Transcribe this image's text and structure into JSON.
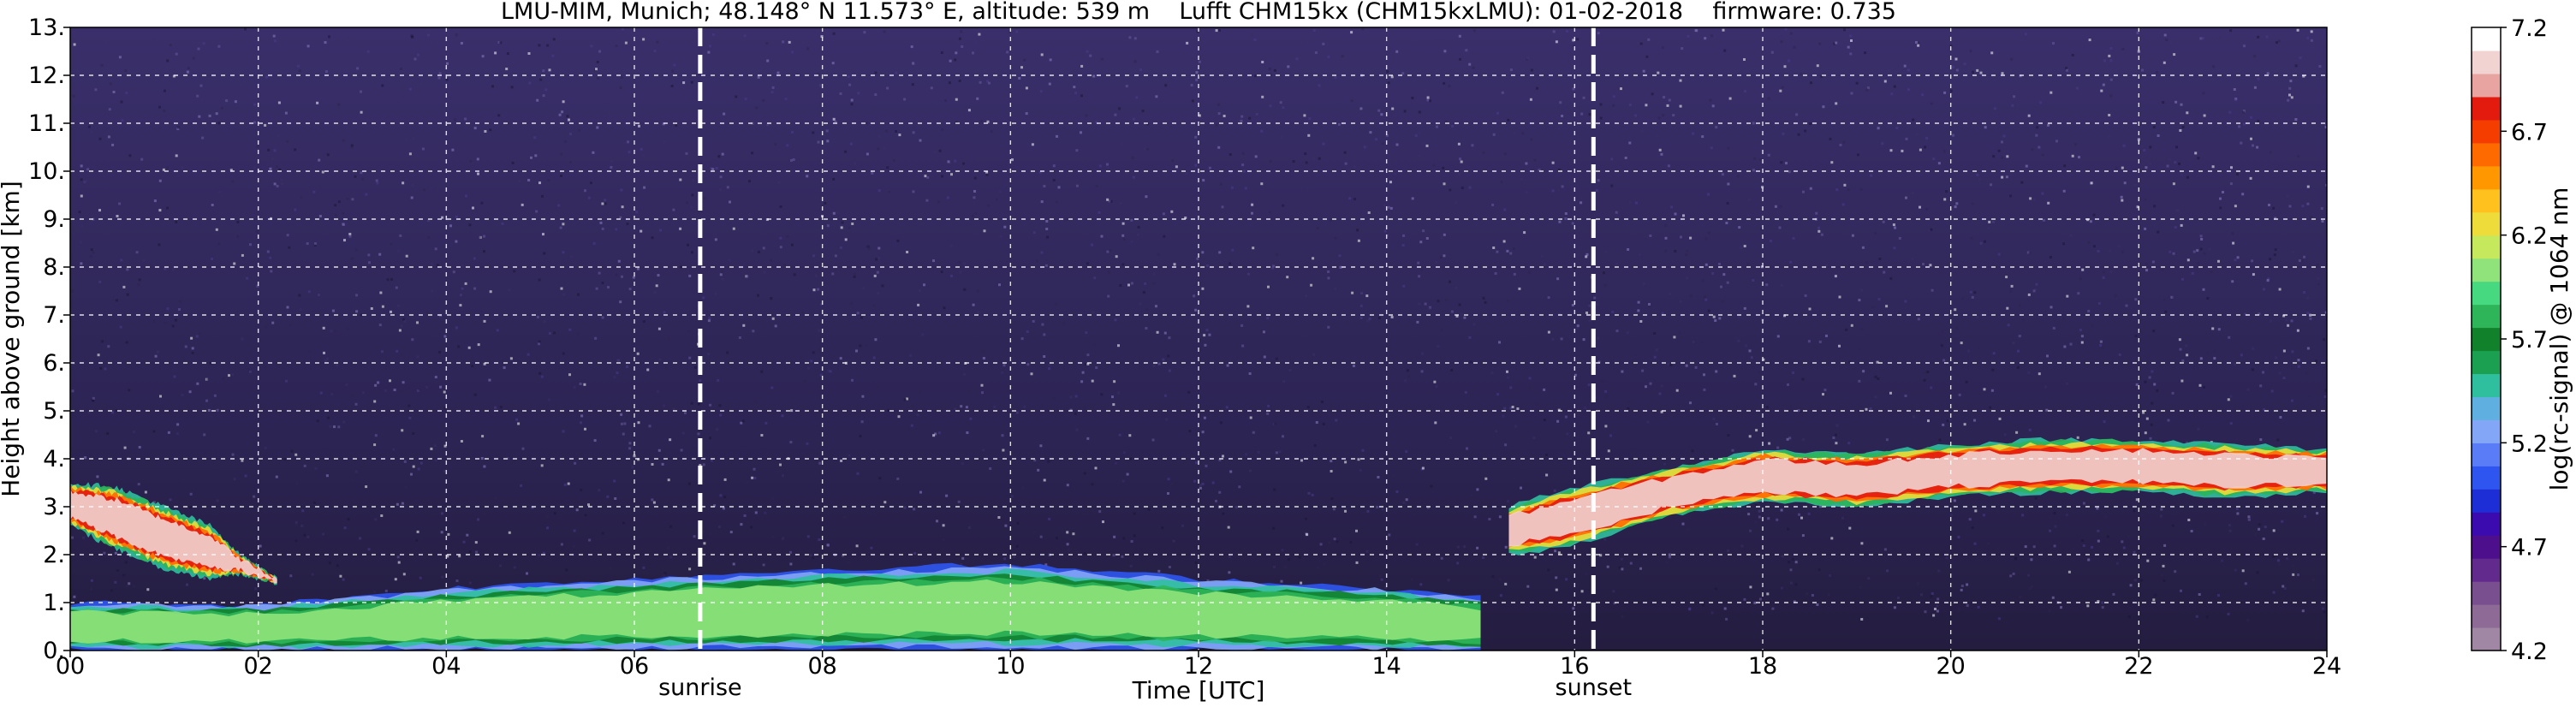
{
  "chart_data": {
    "type": "heatmap",
    "title": "LMU-MIM, Munich; 48.148° N 11.573° E, altitude: 539 m    Lufft CHM15kx (CHM15kxLMU): 01-02-2018    firmware: 0.735",
    "xlabel": "Time [UTC]",
    "ylabel": "Height above ground [km]",
    "xlim": [
      0,
      24
    ],
    "ylim": [
      0,
      13
    ],
    "x_ticks": [
      0,
      2,
      4,
      6,
      8,
      10,
      12,
      14,
      16,
      18,
      20,
      22,
      24
    ],
    "x_tick_labels": [
      "00",
      "02",
      "04",
      "06",
      "08",
      "10",
      "12",
      "14",
      "16",
      "18",
      "20",
      "22",
      "24"
    ],
    "y_ticks": [
      0,
      1,
      2,
      3,
      4,
      5,
      6,
      7,
      8,
      9,
      10,
      11,
      12,
      13
    ],
    "y_tick_labels": [
      "0.",
      "1.",
      "2.",
      "3.",
      "4.",
      "5.",
      "6.",
      "7.",
      "8.",
      "9.",
      "10.",
      "11.",
      "12.",
      "13."
    ],
    "grid": true,
    "markers": [
      {
        "label": "sunrise",
        "x": 6.7
      },
      {
        "label": "sunset",
        "x": 16.2
      }
    ],
    "colorbar": {
      "label": "log(rc-signal) @ 1064 nm",
      "range": [
        4.2,
        7.2
      ],
      "tick_values": [
        4.2,
        4.7,
        5.2,
        5.7,
        6.2,
        6.7,
        7.2
      ],
      "tick_labels": [
        "4.2",
        "4.7",
        "5.2",
        "5.7",
        "6.2",
        "6.7",
        "7.2"
      ],
      "colors": [
        "#a087a3",
        "#8e6b97",
        "#7a4f8f",
        "#632a8e",
        "#4e0f8c",
        "#3b0bb0",
        "#1e2ed6",
        "#2f55f0",
        "#5a7cf6",
        "#84a6f6",
        "#5fb0e0",
        "#2fbf9e",
        "#1aa050",
        "#11812b",
        "#2eb55a",
        "#46d980",
        "#8fe37a",
        "#c6e85c",
        "#eedc3a",
        "#ffc11e",
        "#ff9800",
        "#ff6a00",
        "#f53d00",
        "#e31b0f",
        "#e8a4a0",
        "#f1d4d1",
        "#ffffff"
      ]
    },
    "background_noise_colors": [
      "#3a2f67",
      "#4b3c88",
      "#6a5b9f",
      "#2d2550",
      "#8d7fc2",
      "#ffffff",
      "#1b1636"
    ],
    "layers": [
      {
        "name": "morning cloud",
        "t": [
          0.0,
          0.5,
          1.0,
          1.5,
          1.8,
          2.2
        ],
        "top": [
          3.5,
          3.4,
          3.0,
          2.6,
          2.0,
          1.5
        ],
        "bottom": [
          2.6,
          2.1,
          1.7,
          1.5,
          1.6,
          1.4
        ],
        "value": 7.0
      },
      {
        "name": "boundary layer",
        "t": [
          0.0,
          2.0,
          4.0,
          6.0,
          8.0,
          10.0,
          12.0,
          14.0,
          14.5,
          15.0
        ],
        "top": [
          1.0,
          0.95,
          1.3,
          1.5,
          1.7,
          1.8,
          1.5,
          1.3,
          1.2,
          1.1
        ],
        "bottom": [
          0.0,
          0.0,
          0.0,
          0.0,
          0.0,
          0.0,
          0.0,
          0.0,
          0.0,
          0.0
        ],
        "value": 6.0
      },
      {
        "name": "evening cloud",
        "t": [
          15.3,
          16.0,
          17.0,
          18.0,
          19.0,
          20.0,
          21.0,
          22.0,
          23.0,
          24.0
        ],
        "top": [
          3.0,
          3.4,
          3.8,
          4.2,
          4.1,
          4.3,
          4.4,
          4.4,
          4.3,
          4.2
        ],
        "bottom": [
          2.0,
          2.2,
          2.8,
          3.1,
          3.0,
          3.2,
          3.3,
          3.3,
          3.2,
          3.3
        ],
        "value": 7.0
      }
    ]
  }
}
